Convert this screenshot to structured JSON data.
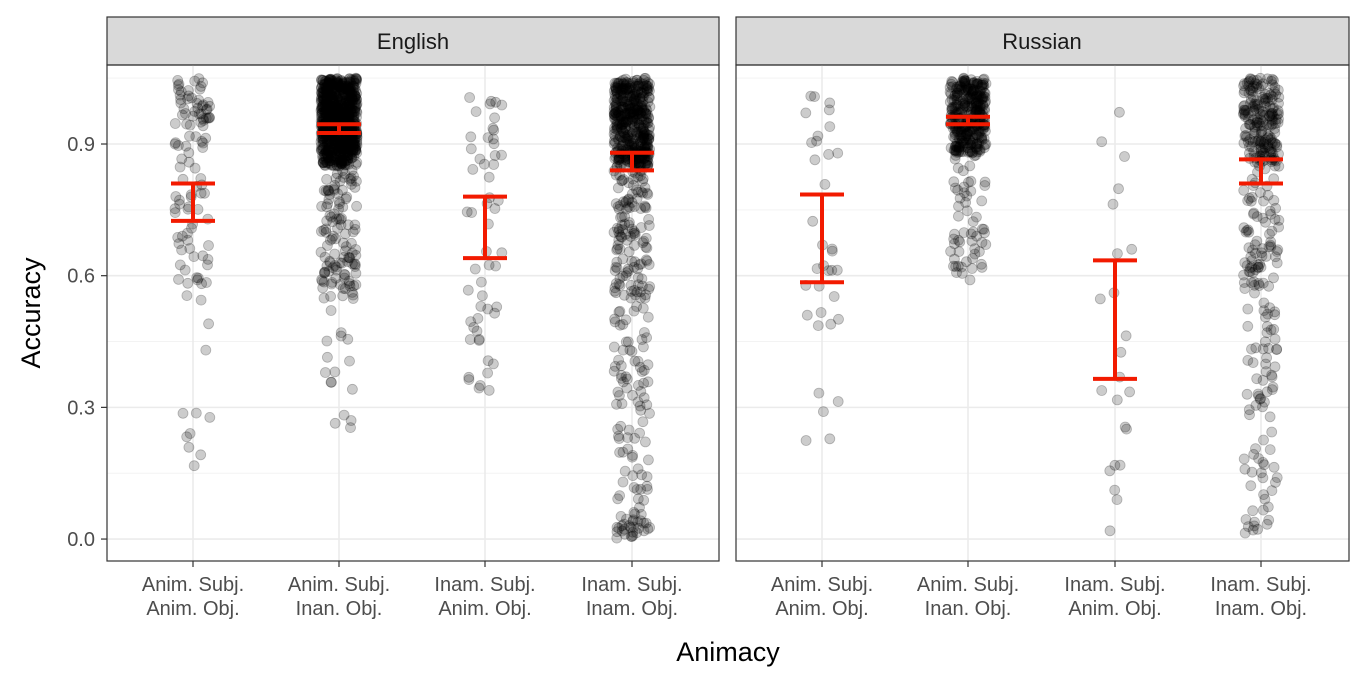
{
  "chart_data": {
    "type": "scatter",
    "facets": [
      "English",
      "Russian"
    ],
    "categories": [
      [
        "Anim. Subj.",
        "Anim. Obj."
      ],
      [
        "Anim. Subj.",
        "Inan. Obj."
      ],
      [
        "Inam. Subj.",
        "Anim. Obj."
      ],
      [
        "Inam. Subj.",
        "Inam. Obj."
      ]
    ],
    "xlabel": "Animacy",
    "ylabel": "Accuracy",
    "yticks": [
      0.0,
      0.3,
      0.6,
      0.9
    ],
    "ytick_labels": [
      "0.0",
      "0.3",
      "0.6",
      "0.9"
    ],
    "ylim": [
      -0.05,
      1.08
    ],
    "grid": true,
    "point_color": "#000000",
    "point_opacity": 0.2,
    "errorbar_color": "#f21a00",
    "error_bars": [
      {
        "facet": "English",
        "category": 0,
        "low": 0.725,
        "high": 0.81
      },
      {
        "facet": "English",
        "category": 1,
        "low": 0.925,
        "high": 0.945
      },
      {
        "facet": "English",
        "category": 2,
        "low": 0.64,
        "high": 0.78
      },
      {
        "facet": "English",
        "category": 3,
        "low": 0.84,
        "high": 0.88
      },
      {
        "facet": "Russian",
        "category": 0,
        "low": 0.585,
        "high": 0.785
      },
      {
        "facet": "Russian",
        "category": 1,
        "low": 0.945,
        "high": 0.962
      },
      {
        "facet": "Russian",
        "category": 2,
        "low": 0.365,
        "high": 0.635
      },
      {
        "facet": "Russian",
        "category": 3,
        "low": 0.81,
        "high": 0.865
      }
    ],
    "point_groups": [
      {
        "facet": "English",
        "category": 0,
        "n": 110,
        "dist": [
          [
            0.9,
            1.05,
            0.45
          ],
          [
            0.55,
            0.9,
            0.45
          ],
          [
            0.1,
            0.55,
            0.1
          ]
        ]
      },
      {
        "facet": "English",
        "category": 1,
        "n": 900,
        "dist": [
          [
            0.85,
            1.05,
            0.85
          ],
          [
            0.55,
            0.85,
            0.13
          ],
          [
            0.2,
            0.55,
            0.02
          ]
        ]
      },
      {
        "facet": "English",
        "category": 2,
        "n": 55,
        "dist": [
          [
            0.85,
            1.03,
            0.35
          ],
          [
            0.5,
            0.85,
            0.4
          ],
          [
            0.33,
            0.5,
            0.25
          ]
        ]
      },
      {
        "facet": "English",
        "category": 3,
        "n": 700,
        "dist": [
          [
            0.85,
            1.05,
            0.65
          ],
          [
            0.55,
            0.85,
            0.18
          ],
          [
            0.05,
            0.55,
            0.13
          ],
          [
            0.0,
            0.05,
            0.04
          ]
        ]
      },
      {
        "facet": "Russian",
        "category": 0,
        "n": 35,
        "dist": [
          [
            0.85,
            1.03,
            0.35
          ],
          [
            0.5,
            0.85,
            0.45
          ],
          [
            0.18,
            0.5,
            0.2
          ]
        ]
      },
      {
        "facet": "Russian",
        "category": 1,
        "n": 400,
        "dist": [
          [
            0.88,
            1.05,
            0.85
          ],
          [
            0.58,
            0.88,
            0.15
          ]
        ]
      },
      {
        "facet": "Russian",
        "category": 2,
        "n": 22,
        "dist": [
          [
            0.55,
            0.98,
            0.35
          ],
          [
            0.3,
            0.55,
            0.3
          ],
          [
            0.0,
            0.3,
            0.35
          ]
        ]
      },
      {
        "facet": "Russian",
        "category": 3,
        "n": 350,
        "dist": [
          [
            0.85,
            1.05,
            0.55
          ],
          [
            0.6,
            0.85,
            0.2
          ],
          [
            0.3,
            0.6,
            0.15
          ],
          [
            0.0,
            0.3,
            0.1
          ]
        ]
      }
    ]
  }
}
